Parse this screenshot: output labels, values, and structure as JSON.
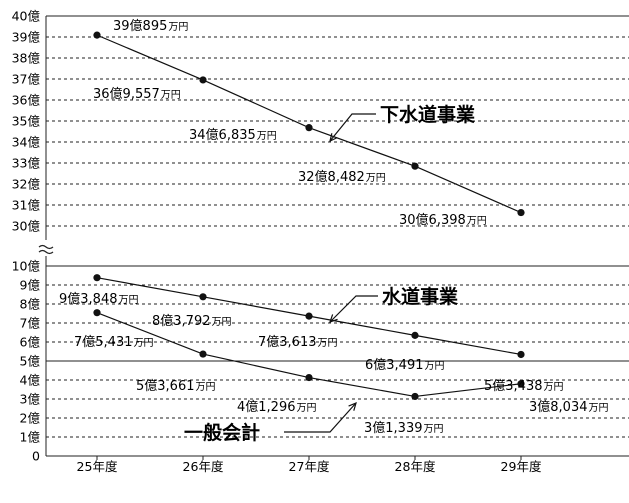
{
  "chart_data": {
    "type": "line",
    "broken_axis": true,
    "categories": [
      "25年度",
      "26年度",
      "27年度",
      "28年度",
      "29年度"
    ],
    "y_ticks_upper": [
      "30億",
      "31億",
      "32億",
      "33億",
      "34億",
      "35億",
      "36億",
      "37億",
      "38億",
      "39億",
      "40億"
    ],
    "y_ticks_lower": [
      "0",
      "1億",
      "2億",
      "3億",
      "4億",
      "5億",
      "6億",
      "7億",
      "8億",
      "9億",
      "10億"
    ],
    "ylim_upper": [
      30,
      40
    ],
    "ylim_lower": [
      0,
      10
    ],
    "series": [
      {
        "name": "下水道事業",
        "values": [
          39.0895,
          36.9557,
          34.6835,
          32.8482,
          30.6398
        ],
        "labels": [
          [
            "39億895",
            "万円"
          ],
          [
            "36億9,557",
            "万円"
          ],
          [
            "34億6,835",
            "万円"
          ],
          [
            "32億8,482",
            "万円"
          ],
          [
            "30億6,398",
            "万円"
          ]
        ]
      },
      {
        "name": "水道事業",
        "values": [
          9.3848,
          8.3792,
          7.3613,
          6.3491,
          5.3438
        ],
        "labels": [
          [
            "9億3,848",
            "万円"
          ],
          [
            "8億3,792",
            "万円"
          ],
          [
            "7億3,613",
            "万円"
          ],
          [
            "6億3,491",
            "万円"
          ],
          [
            "5億3,438",
            "万円"
          ]
        ]
      },
      {
        "name": "一般会計",
        "values": [
          7.5431,
          5.3661,
          4.1296,
          3.1339,
          3.8034
        ],
        "labels": [
          [
            "7億5,431",
            "万円"
          ],
          [
            "5億3,661",
            "万円"
          ],
          [
            "4億1,296",
            "万円"
          ],
          [
            "3億1,339",
            "万円"
          ],
          [
            "3億8,034",
            "万円"
          ]
        ]
      }
    ],
    "grid": true
  }
}
